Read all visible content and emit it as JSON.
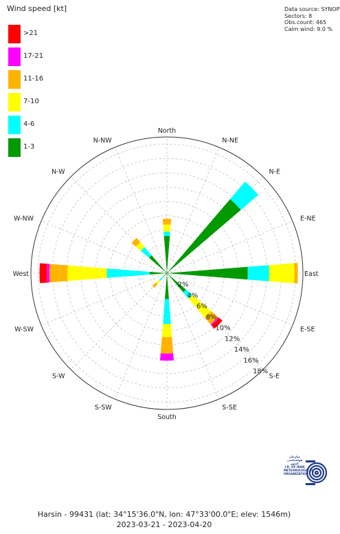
{
  "chart_data": {
    "type": "polar-bar",
    "title": "Wind speed [kt]",
    "directions": [
      "North",
      "N-NE",
      "N-E",
      "E-NE",
      "East",
      "E-SE",
      "S-E",
      "S-SE",
      "South",
      "S-SW",
      "S-W",
      "W-SW",
      "West",
      "W-NW",
      "N-W",
      "N-NW"
    ],
    "direction_angles": [
      0,
      22.5,
      45,
      67.5,
      90,
      112.5,
      135,
      157.5,
      180,
      202.5,
      225,
      247.5,
      270,
      292.5,
      315,
      337.5
    ],
    "legend": [
      {
        "label": ">21",
        "color": "#ff0000"
      },
      {
        "label": "17-21",
        "color": "#ff00ff"
      },
      {
        "label": "11-16",
        "color": "#ffb400"
      },
      {
        "label": "7-10",
        "color": "#ffff00"
      },
      {
        "label": "4-6",
        "color": "#00ffff"
      },
      {
        "label": "1-3",
        "color": "#009900"
      }
    ],
    "speed_classes": [
      "1-3",
      "4-6",
      "7-10",
      "11-16",
      "17-21",
      ">21"
    ],
    "class_colors": [
      "#009900",
      "#00ffff",
      "#ffff00",
      "#ffb400",
      "#ff00ff",
      "#ff0000"
    ],
    "radial_ticks": [
      "2%",
      "4%",
      "6%",
      "8%",
      "10%",
      "12%",
      "14%",
      "16%",
      "18%"
    ],
    "r_max": 19,
    "sectors": [
      {
        "direction": "North",
        "angle": 0,
        "values": [
          5.2,
          0.6,
          1.0,
          0.8,
          0,
          0
        ]
      },
      {
        "direction": "N-E",
        "angle": 45,
        "values": [
          13.6,
          3.2,
          0,
          0,
          0,
          0
        ]
      },
      {
        "direction": "East",
        "angle": 90,
        "values": [
          11.3,
          3.0,
          3.5,
          0.5,
          0,
          0
        ]
      },
      {
        "direction": "S-E",
        "angle": 135,
        "values": [
          3.5,
          1.2,
          3.4,
          1.3,
          0.2,
          0.6
        ]
      },
      {
        "direction": "South",
        "angle": 180,
        "values": [
          3.6,
          3.5,
          1.8,
          2.3,
          1.0,
          0
        ]
      },
      {
        "direction": "S-W",
        "angle": 225,
        "values": [
          0.6,
          0.8,
          0.6,
          0.7,
          0,
          0
        ]
      },
      {
        "direction": "West",
        "angle": 270,
        "values": [
          2.4,
          6.0,
          5.5,
          2.5,
          0.4,
          1.0
        ]
      },
      {
        "direction": "N-W",
        "angle": 315,
        "values": [
          3.3,
          1.5,
          0.9,
          0.8,
          0,
          0
        ]
      }
    ]
  },
  "info": {
    "source": "Data source: SYNOP",
    "sectors": "Sectors: 8",
    "obs": "Obs.count: 465",
    "calm": "Calm wind: 9.0 %"
  },
  "footer": {
    "line1": "Harsin - 99431 (lat: 34°15'36.0\"N, lon: 47°33'00.0\"E; elev: 1546m)",
    "line2": "2023-03-21 - 2023-04-20"
  },
  "logo": {
    "script": "سازمان هواشناسی کشور",
    "line1": "I.R. OF IRAN",
    "line2": "METEOROLOGICAL",
    "line3": "ORGANIZATION"
  }
}
